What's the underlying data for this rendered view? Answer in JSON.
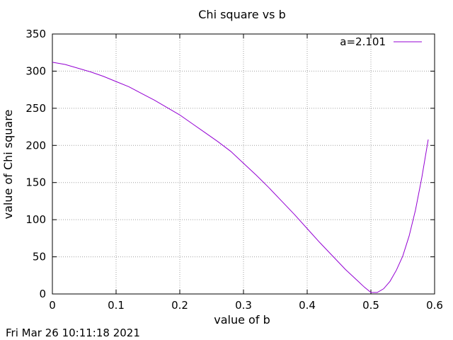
{
  "chart_data": {
    "type": "line",
    "title": "Chi square vs b",
    "xlabel": "value of b",
    "ylabel": "value of Chi square",
    "xlim": [
      0,
      0.6
    ],
    "ylim": [
      0,
      350
    ],
    "xticks": [
      "0",
      "0.1",
      "0.2",
      "0.3",
      "0.4",
      "0.5",
      "0.6"
    ],
    "yticks": [
      "0",
      "50",
      "100",
      "150",
      "200",
      "250",
      "300",
      "350"
    ],
    "grid": true,
    "legend_position": "top-right",
    "series": [
      {
        "name": "a=2.101",
        "color": "#9400d3",
        "x": [
          0,
          0.02,
          0.04,
          0.06,
          0.08,
          0.1,
          0.12,
          0.14,
          0.16,
          0.18,
          0.2,
          0.22,
          0.24,
          0.26,
          0.28,
          0.3,
          0.32,
          0.34,
          0.36,
          0.38,
          0.4,
          0.42,
          0.44,
          0.46,
          0.48,
          0.49,
          0.5,
          0.51,
          0.52,
          0.53,
          0.54,
          0.55,
          0.56,
          0.57,
          0.58,
          0.59
        ],
        "y": [
          312,
          309,
          304,
          299,
          293,
          286,
          279,
          270,
          261,
          251,
          241,
          229,
          217,
          205,
          192,
          176,
          160,
          143,
          125,
          107,
          88,
          69,
          51,
          33,
          17,
          9,
          2,
          2,
          7,
          17,
          32,
          51,
          78,
          113,
          157,
          208
        ]
      }
    ]
  },
  "footer": {
    "timestamp": "Fri Mar 26 10:11:18 2021"
  }
}
